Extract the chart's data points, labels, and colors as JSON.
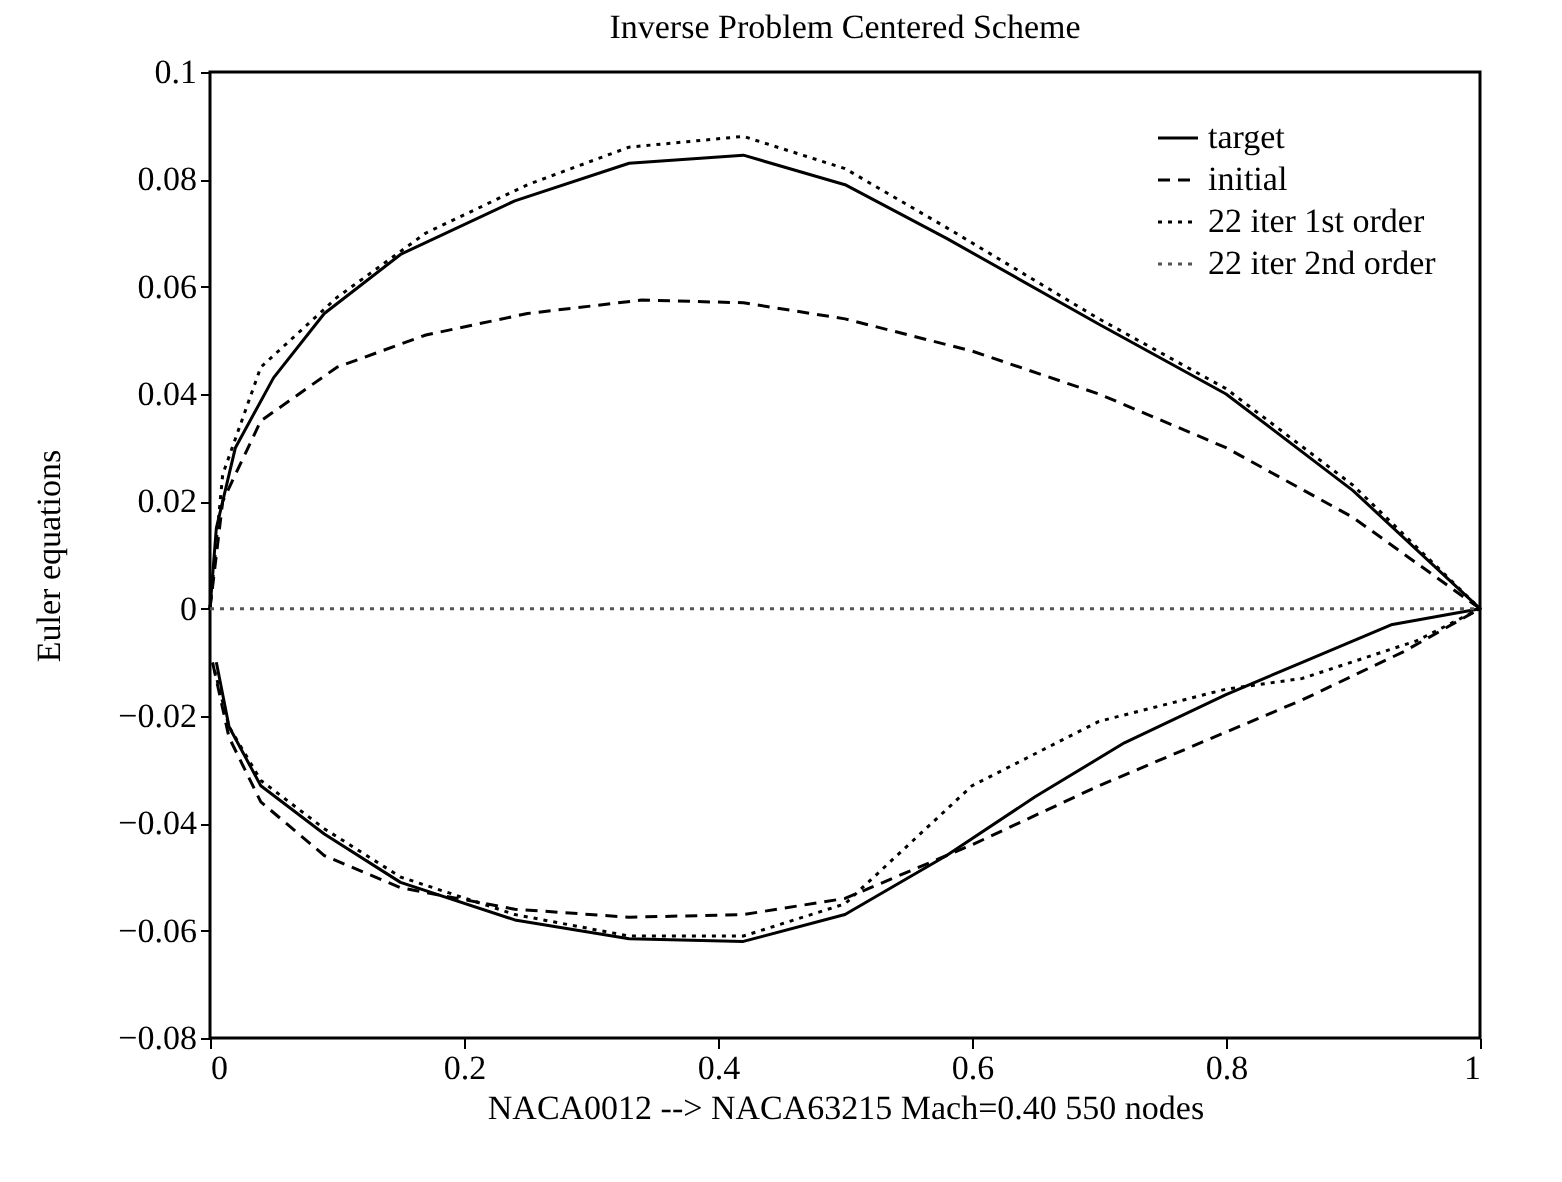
{
  "chart_data": {
    "type": "line",
    "title": "Inverse Problem Centered Scheme",
    "xlabel": "NACA0012 --> NACA63215  Mach=0.40  550 nodes",
    "ylabel": "Euler equations",
    "xlim": [
      0,
      1
    ],
    "xticks": [
      0,
      0.2,
      0.4,
      0.6,
      0.8,
      1
    ],
    "ylim": [
      -0.08,
      0.1
    ],
    "yticks": [
      -0.08,
      -0.06,
      -0.04,
      -0.02,
      0,
      0.02,
      0.04,
      0.06,
      0.08,
      0.1
    ],
    "grid": false,
    "legend": "top right",
    "marker": "none",
    "series": [
      {
        "name": "target",
        "color": "#000000",
        "line_style": "solid",
        "x": [
          0,
          0.005,
          0.02,
          0.05,
          0.09,
          0.15,
          0.24,
          0.33,
          0.42,
          0.5,
          0.58,
          0.7,
          0.8,
          0.9,
          1,
          0.93,
          0.86,
          0.8,
          0.72,
          0.65,
          0.58,
          0.5,
          0.42,
          0.33,
          0.24,
          0.15,
          0.09,
          0.04,
          0.015,
          0.005
        ],
        "values": [
          0,
          0.015,
          0.03,
          0.043,
          0.055,
          0.066,
          0.076,
          0.083,
          0.0845,
          0.079,
          0.069,
          0.053,
          0.04,
          0.022,
          0,
          -0.003,
          -0.01,
          -0.016,
          -0.025,
          -0.035,
          -0.046,
          -0.057,
          -0.062,
          -0.0615,
          -0.058,
          -0.051,
          -0.042,
          -0.033,
          -0.022,
          -0.01
        ]
      },
      {
        "name": "initial",
        "color": "#000000",
        "line_style": "dashed",
        "x": [
          0,
          0.01,
          0.04,
          0.1,
          0.17,
          0.25,
          0.34,
          0.42,
          0.5,
          0.6,
          0.7,
          0.8,
          0.9,
          1,
          0.94,
          0.86,
          0.8,
          0.7,
          0.6,
          0.5,
          0.42,
          0.33,
          0.24,
          0.15,
          0.09,
          0.04,
          0.015,
          0.002
        ],
        "values": [
          0,
          0.02,
          0.035,
          0.045,
          0.051,
          0.055,
          0.0575,
          0.057,
          0.054,
          0.048,
          0.04,
          0.03,
          0.017,
          0,
          -0.008,
          -0.017,
          -0.023,
          -0.033,
          -0.044,
          -0.054,
          -0.057,
          -0.0575,
          -0.056,
          -0.052,
          -0.046,
          -0.036,
          -0.024,
          -0.01
        ]
      },
      {
        "name": "22 iter 1st order",
        "color": "#000000",
        "line_style": "dotted",
        "x": [
          0,
          0.01,
          0.04,
          0.1,
          0.17,
          0.25,
          0.33,
          0.42,
          0.5,
          0.58,
          0.7,
          0.8,
          0.9,
          1,
          0.95,
          0.86,
          0.8,
          0.7,
          0.6,
          0.5,
          0.42,
          0.33,
          0.24,
          0.15,
          0.09,
          0.04,
          0.015,
          0.002
        ],
        "values": [
          0,
          0.025,
          0.045,
          0.058,
          0.07,
          0.079,
          0.086,
          0.088,
          0.082,
          0.071,
          0.054,
          0.041,
          0.023,
          0,
          -0.006,
          -0.013,
          -0.015,
          -0.021,
          -0.033,
          -0.055,
          -0.061,
          -0.061,
          -0.057,
          -0.05,
          -0.041,
          -0.032,
          -0.022,
          -0.01
        ]
      },
      {
        "name": "22 iter 2nd order",
        "color": "#555555",
        "line_style": "dotted",
        "x": [
          0,
          1
        ],
        "values": [
          0,
          0
        ]
      }
    ]
  }
}
